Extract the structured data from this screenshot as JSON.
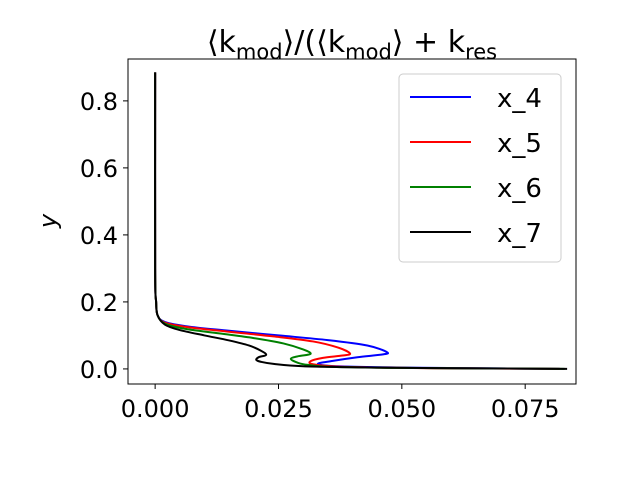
{
  "chart_data": {
    "type": "line",
    "title": "⟨k_mod⟩/(⟨k_mod⟩ + k_res",
    "title_parts": {
      "p1": "⟨k",
      "sub1": "mod",
      "p2": "⟩/(⟨k",
      "sub2": "mod",
      "p3": "⟩ + k",
      "sub3": "res"
    },
    "xlabel": "",
    "ylabel": "y",
    "xlim": [
      -0.0055,
      0.0853
    ],
    "ylim": [
      -0.045,
      0.925
    ],
    "xticks": [
      0.0,
      0.025,
      0.05,
      0.075
    ],
    "xtick_labels": [
      "0.000",
      "0.025",
      "0.050",
      "0.075"
    ],
    "yticks": [
      0.0,
      0.2,
      0.4,
      0.6,
      0.8
    ],
    "ytick_labels": [
      "0.0",
      "0.2",
      "0.4",
      "0.6",
      "0.8"
    ],
    "grid": false,
    "legend_position": "top-right",
    "series": [
      {
        "name": "x_4",
        "color": "#0000ff",
        "points": [
          [
            0.0,
            0.885
          ],
          [
            0.0,
            0.3
          ],
          [
            0.0002,
            0.2
          ],
          [
            0.0005,
            0.16
          ],
          [
            0.002,
            0.14
          ],
          [
            0.007,
            0.126
          ],
          [
            0.015,
            0.114
          ],
          [
            0.025,
            0.1
          ],
          [
            0.035,
            0.086
          ],
          [
            0.043,
            0.07
          ],
          [
            0.047,
            0.05
          ],
          [
            0.046,
            0.043
          ],
          [
            0.041,
            0.035
          ],
          [
            0.036,
            0.024
          ],
          [
            0.033,
            0.015
          ],
          [
            0.037,
            0.008
          ],
          [
            0.05,
            0.004
          ],
          [
            0.065,
            0.002
          ],
          [
            0.075,
            0.001
          ],
          [
            0.082,
            0.0003
          ]
        ]
      },
      {
        "name": "x_5",
        "color": "#ff0000",
        "points": [
          [
            0.0,
            0.885
          ],
          [
            0.0,
            0.3
          ],
          [
            0.0002,
            0.2
          ],
          [
            0.0005,
            0.16
          ],
          [
            0.002,
            0.138
          ],
          [
            0.007,
            0.124
          ],
          [
            0.015,
            0.111
          ],
          [
            0.024,
            0.097
          ],
          [
            0.032,
            0.082
          ],
          [
            0.037,
            0.064
          ],
          [
            0.0395,
            0.046
          ],
          [
            0.038,
            0.04
          ],
          [
            0.034,
            0.033
          ],
          [
            0.0315,
            0.023
          ],
          [
            0.032,
            0.014
          ],
          [
            0.037,
            0.007
          ],
          [
            0.05,
            0.003
          ],
          [
            0.065,
            0.0015
          ],
          [
            0.075,
            0.0008
          ],
          [
            0.082,
            0.0003
          ]
        ]
      },
      {
        "name": "x_6",
        "color": "#008000",
        "points": [
          [
            0.0,
            0.885
          ],
          [
            0.0,
            0.3
          ],
          [
            0.0002,
            0.2
          ],
          [
            0.0005,
            0.16
          ],
          [
            0.002,
            0.135
          ],
          [
            0.006,
            0.12
          ],
          [
            0.013,
            0.106
          ],
          [
            0.02,
            0.092
          ],
          [
            0.026,
            0.076
          ],
          [
            0.03,
            0.058
          ],
          [
            0.0315,
            0.045
          ],
          [
            0.029,
            0.038
          ],
          [
            0.0275,
            0.03
          ],
          [
            0.029,
            0.018
          ],
          [
            0.031,
            0.012
          ],
          [
            0.036,
            0.006
          ],
          [
            0.05,
            0.003
          ],
          [
            0.065,
            0.0015
          ],
          [
            0.076,
            0.0008
          ],
          [
            0.083,
            0.0003
          ]
        ]
      },
      {
        "name": "x_7",
        "color": "#000000",
        "points": [
          [
            0.0,
            0.885
          ],
          [
            0.0,
            0.3
          ],
          [
            0.0002,
            0.2
          ],
          [
            0.0005,
            0.16
          ],
          [
            0.002,
            0.132
          ],
          [
            0.005,
            0.116
          ],
          [
            0.01,
            0.1
          ],
          [
            0.015,
            0.085
          ],
          [
            0.019,
            0.07
          ],
          [
            0.0215,
            0.054
          ],
          [
            0.0225,
            0.042
          ],
          [
            0.021,
            0.035
          ],
          [
            0.0205,
            0.027
          ],
          [
            0.0215,
            0.021
          ],
          [
            0.024,
            0.015
          ],
          [
            0.03,
            0.008
          ],
          [
            0.045,
            0.004
          ],
          [
            0.06,
            0.002
          ],
          [
            0.075,
            0.001
          ],
          [
            0.0835,
            0.0003
          ]
        ]
      }
    ]
  }
}
